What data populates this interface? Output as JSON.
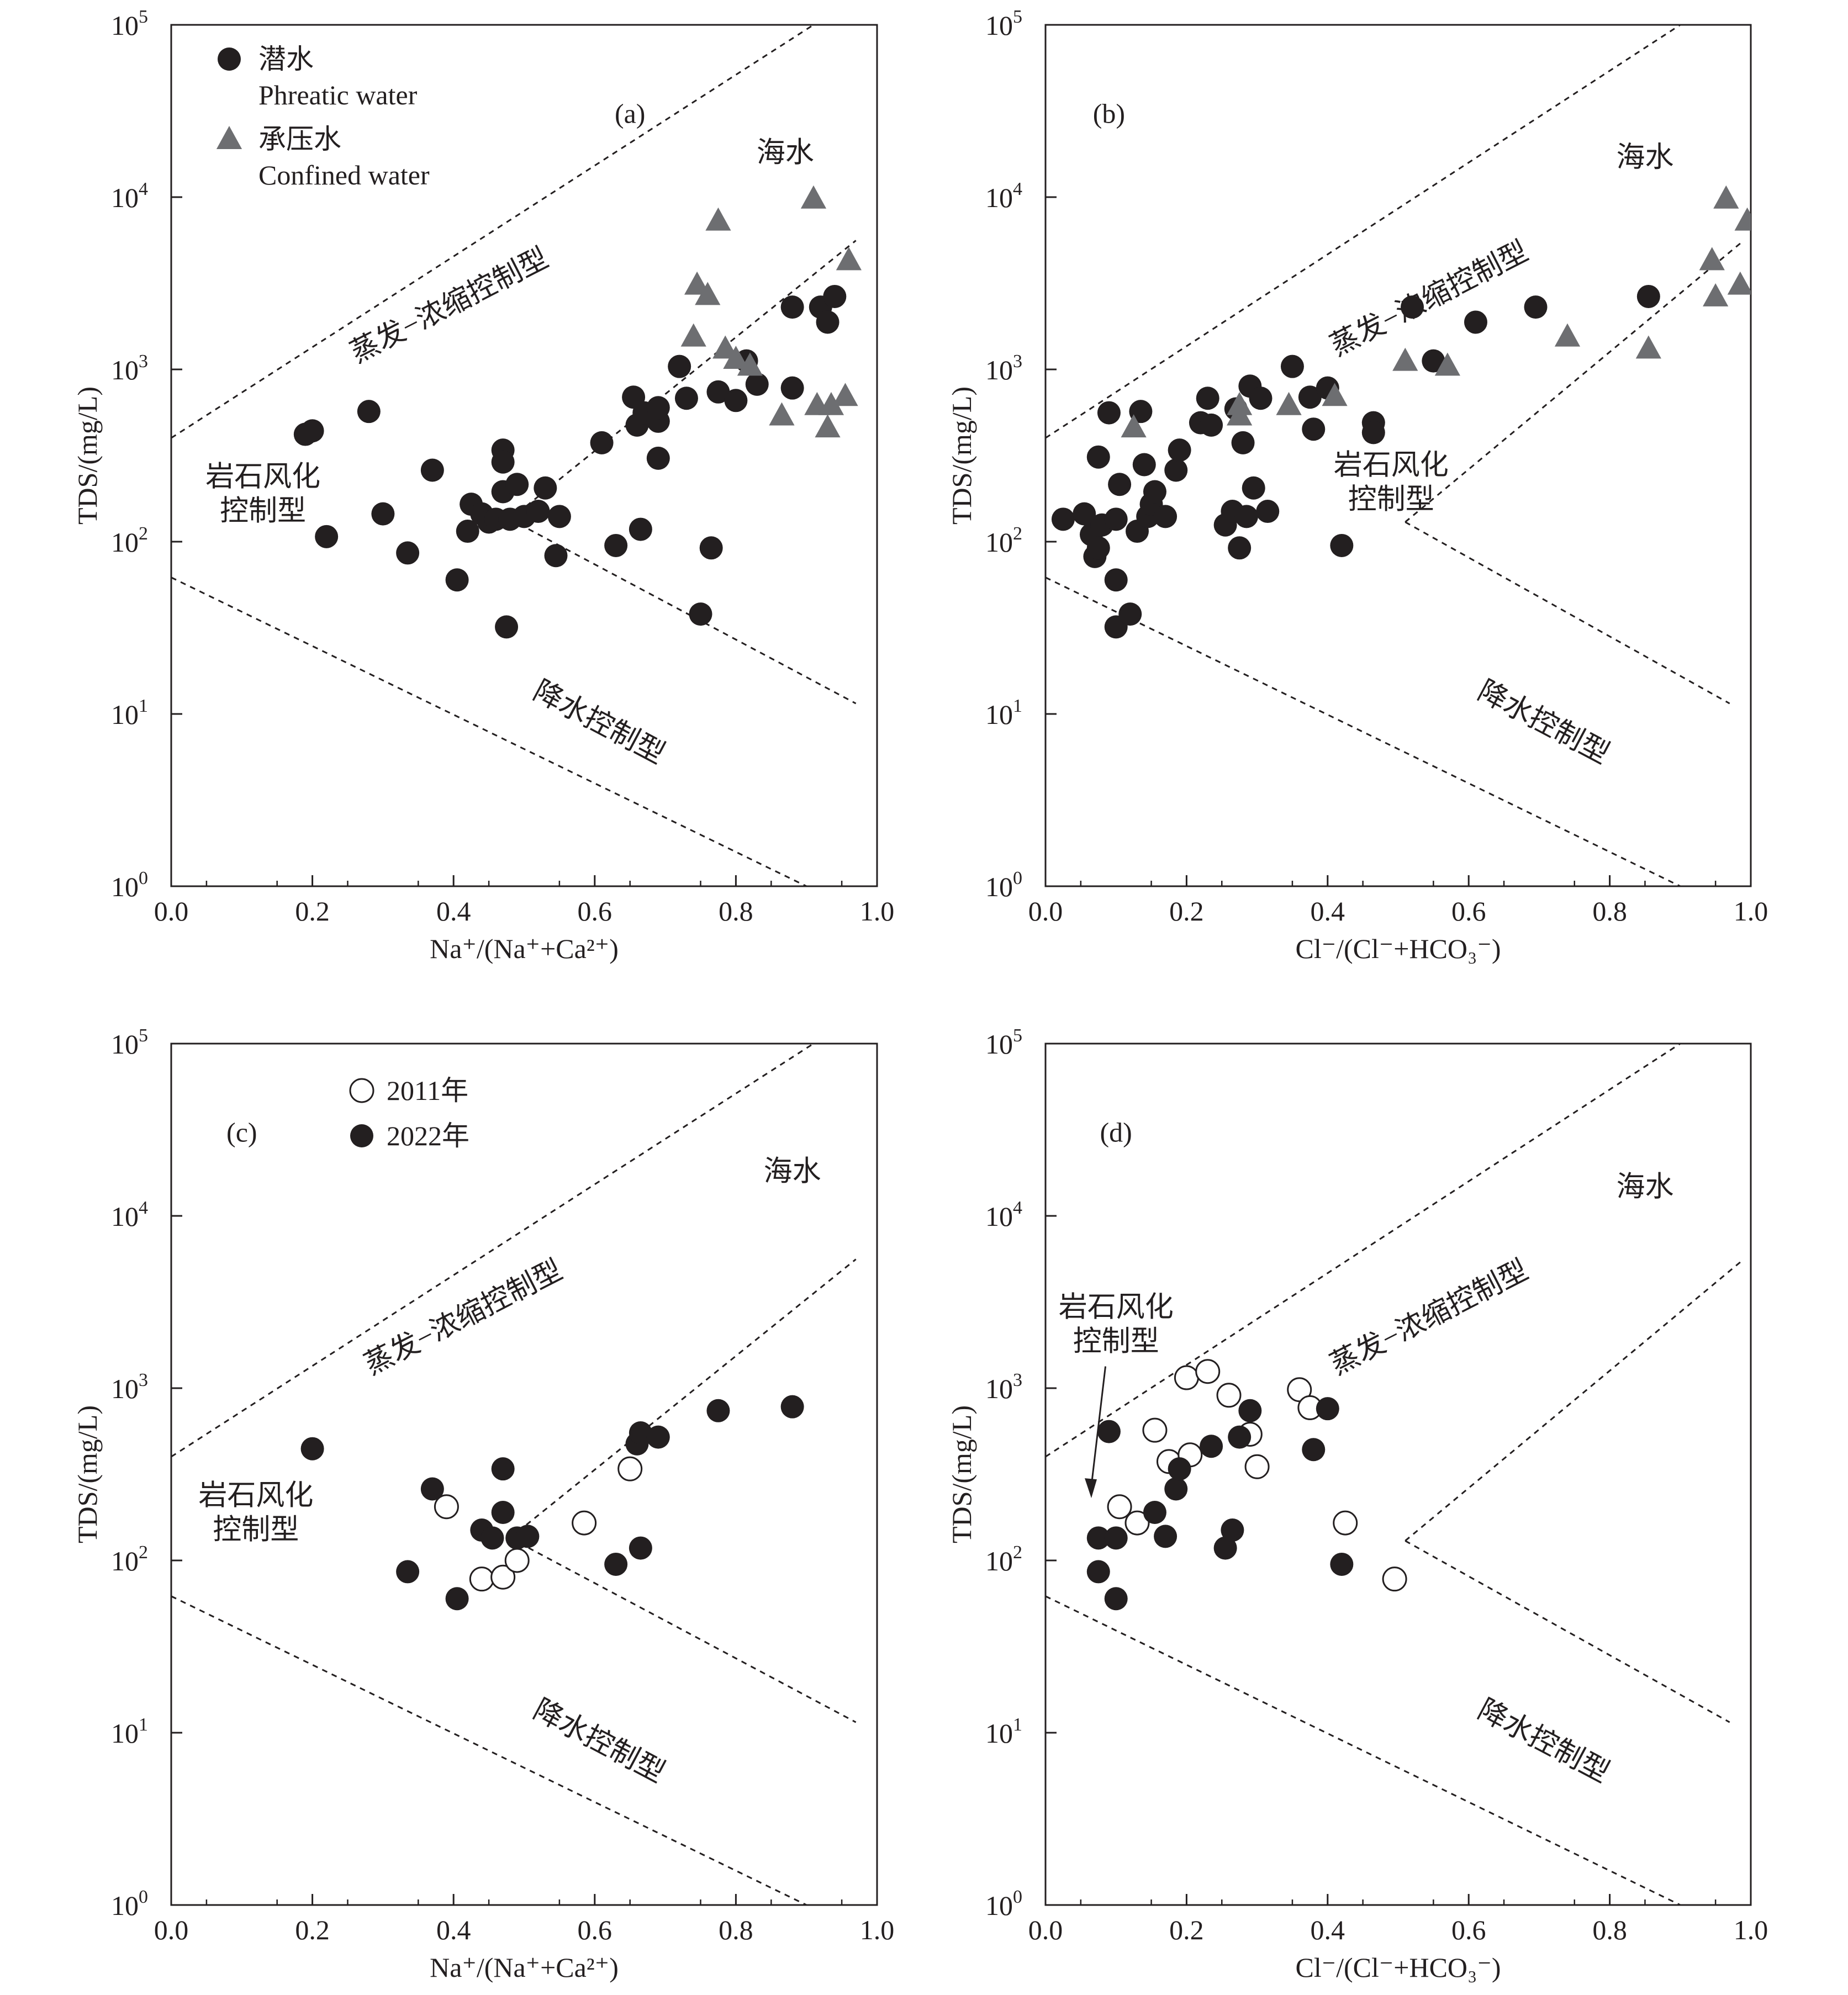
{
  "colors": {
    "axis": "#231f20",
    "phreatic": "#231f20",
    "confined": "#6d6e71",
    "open_marker": "#ffffff"
  },
  "chart_data": [
    {
      "type": "scatter",
      "panel": "(a)",
      "xlabel": "Na⁺/(Na⁺+Ca²⁺)",
      "ylabel": "TDS/(mg/L)",
      "xlim": [
        0,
        1
      ],
      "ylim": [
        1,
        100000
      ],
      "yscale": "log",
      "xticks": [
        "0.0",
        "0.2",
        "0.4",
        "0.6",
        "0.8",
        "1.0"
      ],
      "yticks": [
        {
          "base": "10",
          "exp": "0"
        },
        {
          "base": "10",
          "exp": "1"
        },
        {
          "base": "10",
          "exp": "2"
        },
        {
          "base": "10",
          "exp": "3"
        },
        {
          "base": "10",
          "exp": "4"
        },
        {
          "base": "10",
          "exp": "5"
        }
      ],
      "grid": false,
      "legend_position": "top-left",
      "legend": [
        {
          "marker": "filled-circle",
          "label_cn": "潜水",
          "label_en": "Phreatic water"
        },
        {
          "marker": "triangle",
          "label_cn": "承压水",
          "label_en": "Confined water"
        }
      ],
      "region_labels": {
        "sea": "海水",
        "evap": "蒸发−浓缩控制型",
        "rock": [
          "岩石风化",
          "控制型"
        ],
        "precip": "降水控制型"
      },
      "series": [
        {
          "name": "潜水 Phreatic water",
          "marker": "filled-circle",
          "points": [
            [
              0.19,
              420
            ],
            [
              0.2,
              440
            ],
            [
              0.22,
              107
            ],
            [
              0.28,
              570
            ],
            [
              0.3,
              145
            ],
            [
              0.335,
              86
            ],
            [
              0.37,
              260
            ],
            [
              0.405,
              60
            ],
            [
              0.42,
              115
            ],
            [
              0.425,
              165
            ],
            [
              0.44,
              145
            ],
            [
              0.45,
              130
            ],
            [
              0.46,
              135
            ],
            [
              0.47,
              195
            ],
            [
              0.47,
              340
            ],
            [
              0.47,
              290
            ],
            [
              0.475,
              32
            ],
            [
              0.48,
              135
            ],
            [
              0.49,
              215
            ],
            [
              0.5,
              140
            ],
            [
              0.52,
              150
            ],
            [
              0.53,
              205
            ],
            [
              0.545,
              83
            ],
            [
              0.55,
              140
            ],
            [
              0.61,
              375
            ],
            [
              0.63,
              95
            ],
            [
              0.655,
              690
            ],
            [
              0.66,
              475
            ],
            [
              0.665,
              118
            ],
            [
              0.67,
              560
            ],
            [
              0.69,
              500
            ],
            [
              0.69,
              600
            ],
            [
              0.69,
              305
            ],
            [
              0.72,
              1040
            ],
            [
              0.73,
              680
            ],
            [
              0.75,
              38
            ],
            [
              0.765,
              92
            ],
            [
              0.775,
              740
            ],
            [
              0.8,
              660
            ],
            [
              0.815,
              1120
            ],
            [
              0.83,
              820
            ],
            [
              0.88,
              2300
            ],
            [
              0.88,
              780
            ],
            [
              0.92,
              2300
            ],
            [
              0.93,
              1880
            ],
            [
              0.94,
              2650
            ]
          ]
        },
        {
          "name": "承压水 Confined water",
          "marker": "triangle",
          "points": [
            [
              0.74,
              1550
            ],
            [
              0.745,
              3100
            ],
            [
              0.76,
              2700
            ],
            [
              0.775,
              7300
            ],
            [
              0.785,
              1320
            ],
            [
              0.8,
              1150
            ],
            [
              0.82,
              1050
            ],
            [
              0.865,
              540
            ],
            [
              0.91,
              9800
            ],
            [
              0.915,
              620
            ],
            [
              0.93,
              460
            ],
            [
              0.935,
              620
            ],
            [
              0.955,
              700
            ],
            [
              0.96,
              4300
            ]
          ]
        }
      ]
    },
    {
      "type": "scatter",
      "panel": "(b)",
      "xlabel": "Cl⁻/(Cl⁻+HCO₃⁻)",
      "ylabel": "TDS/(mg/L)",
      "xlim": [
        0,
        1
      ],
      "ylim": [
        1,
        100000
      ],
      "yscale": "log",
      "xticks": [
        "0.0",
        "0.2",
        "0.4",
        "0.6",
        "0.8",
        "1.0"
      ],
      "yticks": [
        {
          "base": "10",
          "exp": "0"
        },
        {
          "base": "10",
          "exp": "1"
        },
        {
          "base": "10",
          "exp": "2"
        },
        {
          "base": "10",
          "exp": "3"
        },
        {
          "base": "10",
          "exp": "4"
        },
        {
          "base": "10",
          "exp": "5"
        }
      ],
      "grid": false,
      "region_labels": {
        "sea": "海水",
        "evap": "蒸发−浓缩控制型",
        "rock": [
          "岩石风化",
          "控制型"
        ],
        "precip": "降水控制型"
      },
      "series": [
        {
          "name": "潜水 Phreatic water",
          "marker": "filled-circle",
          "points": [
            [
              0.025,
              135
            ],
            [
              0.055,
              145
            ],
            [
              0.065,
              110
            ],
            [
              0.07,
              82
            ],
            [
              0.075,
              92
            ],
            [
              0.075,
              310
            ],
            [
              0.08,
              125
            ],
            [
              0.09,
              560
            ],
            [
              0.1,
              32
            ],
            [
              0.1,
              60
            ],
            [
              0.1,
              135
            ],
            [
              0.105,
              215
            ],
            [
              0.12,
              38
            ],
            [
              0.13,
              115
            ],
            [
              0.135,
              570
            ],
            [
              0.14,
              280
            ],
            [
              0.145,
              140
            ],
            [
              0.15,
              165
            ],
            [
              0.155,
              195
            ],
            [
              0.17,
              140
            ],
            [
              0.185,
              260
            ],
            [
              0.19,
              340
            ],
            [
              0.22,
              490
            ],
            [
              0.23,
              680
            ],
            [
              0.235,
              475
            ],
            [
              0.255,
              125
            ],
            [
              0.265,
              150
            ],
            [
              0.27,
              590
            ],
            [
              0.275,
              92
            ],
            [
              0.28,
              375
            ],
            [
              0.285,
              140
            ],
            [
              0.29,
              800
            ],
            [
              0.295,
              205
            ],
            [
              0.305,
              680
            ],
            [
              0.315,
              150
            ],
            [
              0.35,
              1040
            ],
            [
              0.375,
              690
            ],
            [
              0.38,
              450
            ],
            [
              0.4,
              780
            ],
            [
              0.42,
              95
            ],
            [
              0.465,
              490
            ],
            [
              0.465,
              430
            ],
            [
              0.52,
              2300
            ],
            [
              0.55,
              1120
            ],
            [
              0.61,
              1880
            ],
            [
              0.695,
              2300
            ],
            [
              0.855,
              2650
            ]
          ]
        },
        {
          "name": "承压水 Confined water",
          "marker": "triangle",
          "points": [
            [
              0.125,
              460
            ],
            [
              0.275,
              620
            ],
            [
              0.275,
              540
            ],
            [
              0.345,
              620
            ],
            [
              0.41,
              700
            ],
            [
              0.51,
              1120
            ],
            [
              0.57,
              1050
            ],
            [
              0.74,
              1550
            ],
            [
              0.855,
              1320
            ],
            [
              0.945,
              4300
            ],
            [
              0.95,
              2650
            ],
            [
              0.965,
              9800
            ],
            [
              0.985,
              3100
            ],
            [
              0.995,
              7300
            ]
          ]
        }
      ]
    },
    {
      "type": "scatter",
      "panel": "(c)",
      "xlabel": "Na⁺/(Na⁺+Ca²⁺)",
      "ylabel": "TDS/(mg/L)",
      "xlim": [
        0,
        1
      ],
      "ylim": [
        1,
        100000
      ],
      "yscale": "log",
      "xticks": [
        "0.0",
        "0.2",
        "0.4",
        "0.6",
        "0.8",
        "1.0"
      ],
      "yticks": [
        {
          "base": "10",
          "exp": "0"
        },
        {
          "base": "10",
          "exp": "1"
        },
        {
          "base": "10",
          "exp": "2"
        },
        {
          "base": "10",
          "exp": "3"
        },
        {
          "base": "10",
          "exp": "4"
        },
        {
          "base": "10",
          "exp": "5"
        }
      ],
      "grid": false,
      "legend_position": "top-left",
      "legend": [
        {
          "marker": "open-circle",
          "label": "2011年"
        },
        {
          "marker": "filled-circle",
          "label": "2022年"
        }
      ],
      "region_labels": {
        "sea": "海水",
        "evap": "蒸发−浓缩控制型",
        "rock": [
          "岩石风化",
          "控制型"
        ],
        "precip": "降水控制型"
      },
      "series": [
        {
          "name": "2011年",
          "marker": "open-circle",
          "points": [
            [
              0.39,
              205
            ],
            [
              0.44,
              78
            ],
            [
              0.47,
              80
            ],
            [
              0.49,
              100
            ],
            [
              0.585,
              165
            ],
            [
              0.65,
              340
            ]
          ]
        },
        {
          "name": "2022年",
          "marker": "filled-circle",
          "points": [
            [
              0.2,
              445
            ],
            [
              0.335,
              86
            ],
            [
              0.37,
              260
            ],
            [
              0.405,
              60
            ],
            [
              0.44,
              150
            ],
            [
              0.455,
              135
            ],
            [
              0.47,
              340
            ],
            [
              0.47,
              190
            ],
            [
              0.49,
              135
            ],
            [
              0.505,
              138
            ],
            [
              0.63,
              95
            ],
            [
              0.66,
              475
            ],
            [
              0.665,
              550
            ],
            [
              0.665,
              118
            ],
            [
              0.69,
              520
            ],
            [
              0.775,
              740
            ],
            [
              0.88,
              780
            ]
          ]
        }
      ]
    },
    {
      "type": "scatter",
      "panel": "(d)",
      "xlabel": "Cl⁻/(Cl⁻+HCO₃⁻)",
      "ylabel": "TDS/(mg/L)",
      "xlim": [
        0,
        1
      ],
      "ylim": [
        1,
        100000
      ],
      "yscale": "log",
      "xticks": [
        "0.0",
        "0.2",
        "0.4",
        "0.6",
        "0.8",
        "1.0"
      ],
      "yticks": [
        {
          "base": "10",
          "exp": "0"
        },
        {
          "base": "10",
          "exp": "1"
        },
        {
          "base": "10",
          "exp": "2"
        },
        {
          "base": "10",
          "exp": "3"
        },
        {
          "base": "10",
          "exp": "4"
        },
        {
          "base": "10",
          "exp": "5"
        }
      ],
      "grid": false,
      "region_labels": {
        "sea": "海水",
        "evap": "蒸发−浓缩控制型",
        "rock": [
          "岩石风化",
          "控制型"
        ],
        "precip": "降水控制型"
      },
      "series": [
        {
          "name": "2011年",
          "marker": "open-circle",
          "points": [
            [
              0.105,
              205
            ],
            [
              0.13,
              165
            ],
            [
              0.155,
              570
            ],
            [
              0.175,
              375
            ],
            [
              0.2,
              1150
            ],
            [
              0.205,
              410
            ],
            [
              0.23,
              1250
            ],
            [
              0.26,
              910
            ],
            [
              0.29,
              540
            ],
            [
              0.3,
              350
            ],
            [
              0.36,
              980
            ],
            [
              0.375,
              770
            ],
            [
              0.425,
              165
            ],
            [
              0.495,
              78
            ]
          ]
        },
        {
          "name": "2022年",
          "marker": "filled-circle",
          "points": [
            [
              0.075,
              135
            ],
            [
              0.075,
              86
            ],
            [
              0.09,
              560
            ],
            [
              0.1,
              135
            ],
            [
              0.1,
              60
            ],
            [
              0.155,
              190
            ],
            [
              0.17,
              138
            ],
            [
              0.185,
              260
            ],
            [
              0.19,
              340
            ],
            [
              0.235,
              460
            ],
            [
              0.255,
              118
            ],
            [
              0.265,
              150
            ],
            [
              0.275,
              520
            ],
            [
              0.29,
              740
            ],
            [
              0.38,
              440
            ],
            [
              0.4,
              760
            ],
            [
              0.42,
              95
            ]
          ]
        }
      ]
    }
  ]
}
